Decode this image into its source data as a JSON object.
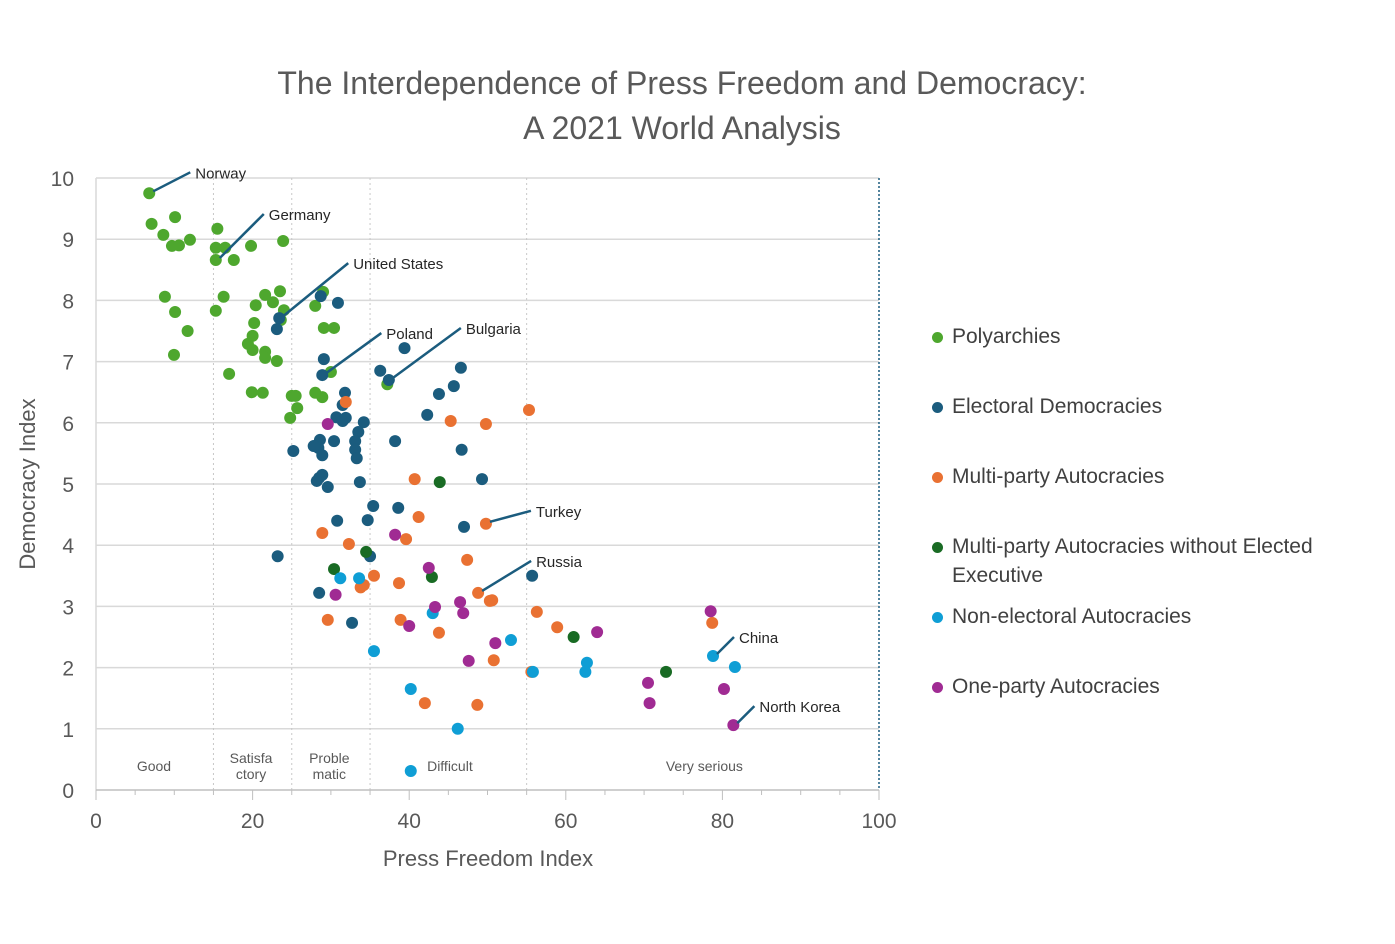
{
  "chart_data": {
    "type": "scatter",
    "title": "The Interdependence of Press Freedom and Democracy: A 2021 World Analysis",
    "title_lines": [
      "The Interdependence of Press Freedom and Democracy:",
      "A 2021 World Analysis"
    ],
    "xlabel": "Press Freedom Index",
    "ylabel": "Democracy Index",
    "xlim": [
      0,
      100
    ],
    "ylim": [
      0,
      10
    ],
    "xticks": [
      0,
      20,
      40,
      60,
      80,
      100
    ],
    "yticks": [
      0,
      1,
      2,
      3,
      4,
      5,
      6,
      7,
      8,
      9,
      10
    ],
    "grid": "horizontal",
    "legend_position": "right",
    "zone_boundaries": [
      15,
      25,
      35,
      55,
      100
    ],
    "zones": [
      {
        "label": "Good",
        "x": 7.4
      },
      {
        "label": "Satisfa\nctory",
        "x": 19.8
      },
      {
        "label": "Proble\nmatic",
        "x": 29.8
      },
      {
        "label": "Difficult",
        "x": 45.2
      },
      {
        "label": "Very serious",
        "x": 77.7
      }
    ],
    "series": [
      {
        "name": "Polyarchies",
        "color": "#4ea72e",
        "points": [
          [
            6.8,
            9.75
          ],
          [
            7.1,
            9.25
          ],
          [
            10.1,
            9.36
          ],
          [
            8.6,
            9.07
          ],
          [
            9.7,
            8.89
          ],
          [
            10.6,
            8.9
          ],
          [
            12.0,
            8.99
          ],
          [
            15.5,
            9.17
          ],
          [
            15.3,
            8.86
          ],
          [
            16.5,
            8.86
          ],
          [
            15.3,
            8.66
          ],
          [
            17.6,
            8.66
          ],
          [
            19.8,
            8.89
          ],
          [
            23.9,
            8.97
          ],
          [
            8.8,
            8.06
          ],
          [
            16.3,
            8.06
          ],
          [
            10.1,
            7.81
          ],
          [
            15.3,
            7.83
          ],
          [
            11.7,
            7.5
          ],
          [
            9.96,
            7.11
          ],
          [
            20.4,
            7.92
          ],
          [
            21.6,
            8.09
          ],
          [
            22.6,
            7.97
          ],
          [
            23.5,
            8.15
          ],
          [
            24.0,
            7.84
          ],
          [
            20.2,
            7.63
          ],
          [
            20.0,
            7.42
          ],
          [
            19.4,
            7.29
          ],
          [
            20.0,
            7.19
          ],
          [
            21.6,
            7.16
          ],
          [
            21.6,
            7.06
          ],
          [
            23.1,
            7.01
          ],
          [
            17.0,
            6.8
          ],
          [
            19.9,
            6.5
          ],
          [
            21.3,
            6.49
          ],
          [
            25.0,
            6.44
          ],
          [
            25.5,
            6.44
          ],
          [
            25.7,
            6.24
          ],
          [
            24.8,
            6.08
          ],
          [
            28.0,
            6.49
          ],
          [
            28.9,
            6.42
          ],
          [
            29.0,
            8.14
          ],
          [
            28.0,
            7.91
          ],
          [
            29.1,
            7.55
          ],
          [
            30.4,
            7.55
          ],
          [
            30.0,
            6.83
          ],
          [
            37.2,
            6.63
          ],
          [
            23.6,
            7.68
          ]
        ]
      },
      {
        "name": "Electoral Democracies",
        "color": "#1b5c7e",
        "points": [
          [
            23.4,
            7.71
          ],
          [
            23.1,
            7.53
          ],
          [
            28.7,
            8.07
          ],
          [
            30.9,
            7.96
          ],
          [
            39.4,
            7.22
          ],
          [
            29.1,
            7.04
          ],
          [
            28.9,
            6.78
          ],
          [
            36.3,
            6.85
          ],
          [
            37.4,
            6.7
          ],
          [
            46.6,
            6.9
          ],
          [
            45.7,
            6.6
          ],
          [
            43.8,
            6.47
          ],
          [
            42.3,
            6.13
          ],
          [
            31.8,
            6.49
          ],
          [
            31.5,
            6.29
          ],
          [
            30.7,
            6.09
          ],
          [
            31.5,
            6.03
          ],
          [
            31.9,
            6.08
          ],
          [
            34.2,
            6.01
          ],
          [
            33.5,
            5.85
          ],
          [
            33.1,
            5.7
          ],
          [
            33.1,
            5.56
          ],
          [
            33.3,
            5.42
          ],
          [
            30.4,
            5.7
          ],
          [
            28.6,
            5.72
          ],
          [
            28.4,
            5.59
          ],
          [
            27.8,
            5.62
          ],
          [
            28.9,
            5.47
          ],
          [
            38.2,
            5.7
          ],
          [
            46.7,
            5.56
          ],
          [
            25.2,
            5.54
          ],
          [
            28.5,
            5.1
          ],
          [
            28.9,
            5.15
          ],
          [
            28.2,
            5.05
          ],
          [
            29.6,
            4.95
          ],
          [
            33.7,
            5.03
          ],
          [
            49.3,
            5.08
          ],
          [
            35.4,
            4.64
          ],
          [
            38.6,
            4.61
          ],
          [
            30.8,
            4.4
          ],
          [
            34.7,
            4.41
          ],
          [
            47.0,
            4.3
          ],
          [
            23.2,
            3.82
          ],
          [
            35.0,
            3.82
          ],
          [
            55.7,
            3.5
          ],
          [
            28.5,
            3.22
          ],
          [
            32.7,
            2.73
          ]
        ]
      },
      {
        "name": "Multi-party Autocracies",
        "color": "#e97132",
        "points": [
          [
            31.9,
            6.34
          ],
          [
            45.3,
            6.03
          ],
          [
            49.8,
            5.98
          ],
          [
            55.3,
            6.21
          ],
          [
            40.7,
            5.08
          ],
          [
            41.2,
            4.46
          ],
          [
            49.8,
            4.35
          ],
          [
            28.9,
            4.2
          ],
          [
            32.3,
            4.02
          ],
          [
            39.6,
            4.1
          ],
          [
            47.4,
            3.76
          ],
          [
            35.5,
            3.5
          ],
          [
            38.7,
            3.38
          ],
          [
            33.8,
            3.31
          ],
          [
            34.2,
            3.35
          ],
          [
            48.8,
            3.22
          ],
          [
            50.3,
            3.09
          ],
          [
            50.6,
            3.1
          ],
          [
            56.3,
            2.91
          ],
          [
            58.9,
            2.66
          ],
          [
            29.6,
            2.78
          ],
          [
            38.9,
            2.78
          ],
          [
            43.8,
            2.57
          ],
          [
            50.8,
            2.12
          ],
          [
            55.6,
            1.93
          ],
          [
            42.0,
            1.42
          ],
          [
            48.7,
            1.39
          ],
          [
            78.7,
            2.73
          ]
        ]
      },
      {
        "name": "Multi-party Autocracies without Elected Executive",
        "color": "#196b24",
        "points": [
          [
            43.9,
            5.03
          ],
          [
            34.5,
            3.89
          ],
          [
            30.4,
            3.61
          ],
          [
            42.9,
            3.48
          ],
          [
            61.0,
            2.5
          ],
          [
            72.8,
            1.93
          ]
        ]
      },
      {
        "name": "Non-electoral Autocracies",
        "color": "#0f9ed5",
        "points": [
          [
            31.2,
            3.46
          ],
          [
            33.6,
            3.46
          ],
          [
            43.0,
            2.89
          ],
          [
            35.5,
            2.27
          ],
          [
            53.0,
            2.45
          ],
          [
            62.7,
            2.08
          ],
          [
            62.5,
            1.93
          ],
          [
            55.8,
            1.93
          ],
          [
            78.8,
            2.19
          ],
          [
            81.6,
            2.01
          ],
          [
            40.2,
            1.65
          ],
          [
            46.2,
            1.0
          ],
          [
            40.2,
            0.31
          ]
        ]
      },
      {
        "name": "One-party Autocracies",
        "color": "#a02b93",
        "points": [
          [
            29.6,
            5.98
          ],
          [
            38.2,
            4.17
          ],
          [
            42.5,
            3.63
          ],
          [
            30.6,
            3.19
          ],
          [
            43.3,
            2.99
          ],
          [
            46.5,
            3.07
          ],
          [
            46.9,
            2.89
          ],
          [
            40.0,
            2.68
          ],
          [
            51.0,
            2.4
          ],
          [
            64.0,
            2.58
          ],
          [
            47.6,
            2.11
          ],
          [
            78.5,
            2.92
          ],
          [
            70.5,
            1.75
          ],
          [
            70.7,
            1.42
          ],
          [
            80.2,
            1.65
          ],
          [
            81.4,
            1.06
          ]
        ]
      }
    ],
    "annotations": [
      {
        "label": "Norway",
        "point": [
          6.8,
          9.75
        ]
      },
      {
        "label": "Germany",
        "point": [
          15.3,
          8.66
        ]
      },
      {
        "label": "United States",
        "point": [
          23.4,
          7.71
        ]
      },
      {
        "label": "Poland",
        "point": [
          28.9,
          6.78
        ]
      },
      {
        "label": "Bulgaria",
        "point": [
          37.4,
          6.7
        ]
      },
      {
        "label": "Turkey",
        "point": [
          49.8,
          4.35
        ]
      },
      {
        "label": "Russia",
        "point": [
          48.8,
          3.22
        ]
      },
      {
        "label": "China",
        "point": [
          78.8,
          2.19
        ]
      },
      {
        "label": "North Korea",
        "point": [
          81.4,
          1.06
        ]
      }
    ]
  }
}
